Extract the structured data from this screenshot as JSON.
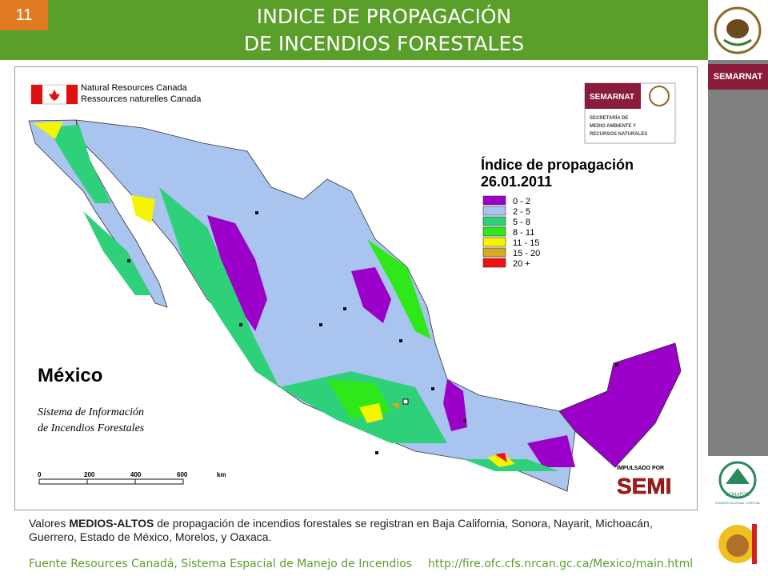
{
  "slide": {
    "number": "11",
    "title_line1": "INDICE DE PROPAGACIÓN",
    "title_line2": "DE INCENDIOS FORESTALES"
  },
  "sidebar": {
    "brand": "SEMARNAT",
    "conafor": "CONAFOR",
    "conafor_full": "COMISIÓN NACIONAL FORESTAL"
  },
  "map": {
    "canada_en": "Natural Resources Canada",
    "canada_fr": "Ressources naturelles Canada",
    "semarnat": {
      "name": "SEMARNAT",
      "line1": "SECRETARÍA DE",
      "line2": "MEDIO AMBIENTE Y",
      "line3": "RECURSOS NATURALES"
    },
    "legend": {
      "title_line1": "Índice de propagación",
      "title_line2": "26.01.2011",
      "items": [
        {
          "label": "0 - 2",
          "color": "#9a00c8"
        },
        {
          "label": "2 - 5",
          "color": "#a9c4ee"
        },
        {
          "label": "5 - 8",
          "color": "#2fd07a"
        },
        {
          "label": "8 - 11",
          "color": "#2ee81a"
        },
        {
          "label": "11 - 15",
          "color": "#f5f500"
        },
        {
          "label": "15 - 20",
          "color": "#d8a820"
        },
        {
          "label": "20 +",
          "color": "#f01010"
        }
      ]
    },
    "country": "México",
    "system_line1": "Sistema de Información",
    "system_line2": "de Incendios Forestales",
    "scale": [
      "0",
      "200",
      "400",
      "600",
      "km"
    ],
    "impulsado": "IMPULSADO POR",
    "semi": "SEMI"
  },
  "description": {
    "before": "Valores ",
    "bold": "MEDIOS-ALTOS",
    "after": "  de propagación de incendios forestales se registran en Baja California, Sonora, Nayarit, Michoacán, Guerrero, Estado de México,  Morelos, y Oaxaca."
  },
  "footer": {
    "source": "Fuente Resources Canadá, Sistema Espacial de Manejo de Incendios",
    "url": "http://fire.ofc.cfs.nrcan.gc.ca/Mexico/main.html"
  }
}
